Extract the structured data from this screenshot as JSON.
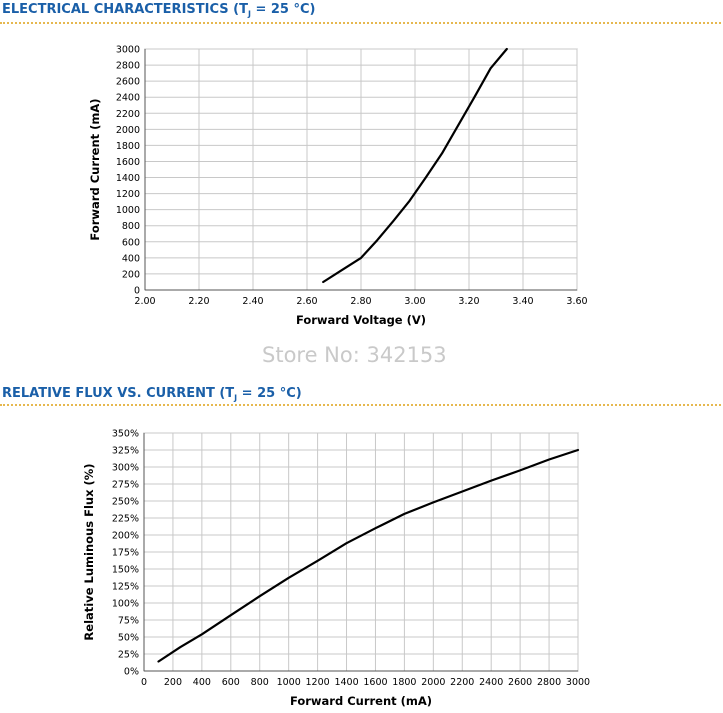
{
  "header1": {
    "title_main": "ELECTRICAL CHARACTERISTICS (T",
    "title_sub": "J",
    "title_end": " = 25 °C)"
  },
  "header2": {
    "title_main": "RELATIVE FLUX VS. CURRENT (T",
    "title_sub": "J",
    "title_end": " = 25 °C)"
  },
  "watermark": "Store No: 342153",
  "colors": {
    "title": "#1a5fa8",
    "rule": "#e6b84f",
    "grid": "#c8c8c8",
    "curve": "#000000",
    "watermark": "#c9c9c9"
  },
  "chart_data": [
    {
      "type": "line",
      "title": "",
      "xlabel": "Forward Voltage (V)",
      "ylabel": "Forward Current (mA)",
      "xlim": [
        2.0,
        3.6
      ],
      "ylim": [
        0,
        3000
      ],
      "x_ticks": [
        "2.00",
        "2.20",
        "2.40",
        "2.60",
        "2.80",
        "3.00",
        "3.20",
        "3.40",
        "3.60"
      ],
      "y_ticks": [
        "0",
        "200",
        "400",
        "600",
        "800",
        "1000",
        "1200",
        "1400",
        "1600",
        "1800",
        "2000",
        "2200",
        "2400",
        "2600",
        "2800",
        "3000"
      ],
      "grid": true,
      "series": [
        {
          "x": [
            2.66,
            2.73,
            2.8,
            2.86,
            2.92,
            2.98,
            3.04,
            3.1,
            3.16,
            3.22,
            3.28,
            3.34
          ],
          "y": [
            100,
            250,
            400,
            620,
            860,
            1110,
            1400,
            1700,
            2050,
            2400,
            2760,
            3000
          ]
        }
      ]
    },
    {
      "type": "line",
      "title": "",
      "xlabel": "Forward Current (mA)",
      "ylabel": "Relative Luminous Flux (%)",
      "xlim": [
        0,
        3000
      ],
      "ylim": [
        0,
        350
      ],
      "x_ticks": [
        "0",
        "200",
        "400",
        "600",
        "800",
        "1000",
        "1200",
        "1400",
        "1600",
        "1800",
        "2000",
        "2200",
        "2400",
        "2600",
        "2800",
        "3000"
      ],
      "y_ticks": [
        "0%",
        "25%",
        "50%",
        "75%",
        "100%",
        "125%",
        "150%",
        "175%",
        "200%",
        "225%",
        "250%",
        "275%",
        "300%",
        "325%",
        "350%"
      ],
      "grid": true,
      "series": [
        {
          "x": [
            100,
            250,
            400,
            600,
            800,
            1000,
            1200,
            1400,
            1600,
            1800,
            2000,
            2200,
            2400,
            2600,
            2800,
            3000
          ],
          "y": [
            14,
            35,
            54,
            82,
            110,
            137,
            162,
            188,
            210,
            231,
            248,
            264,
            280,
            295,
            311,
            325
          ]
        }
      ]
    }
  ]
}
